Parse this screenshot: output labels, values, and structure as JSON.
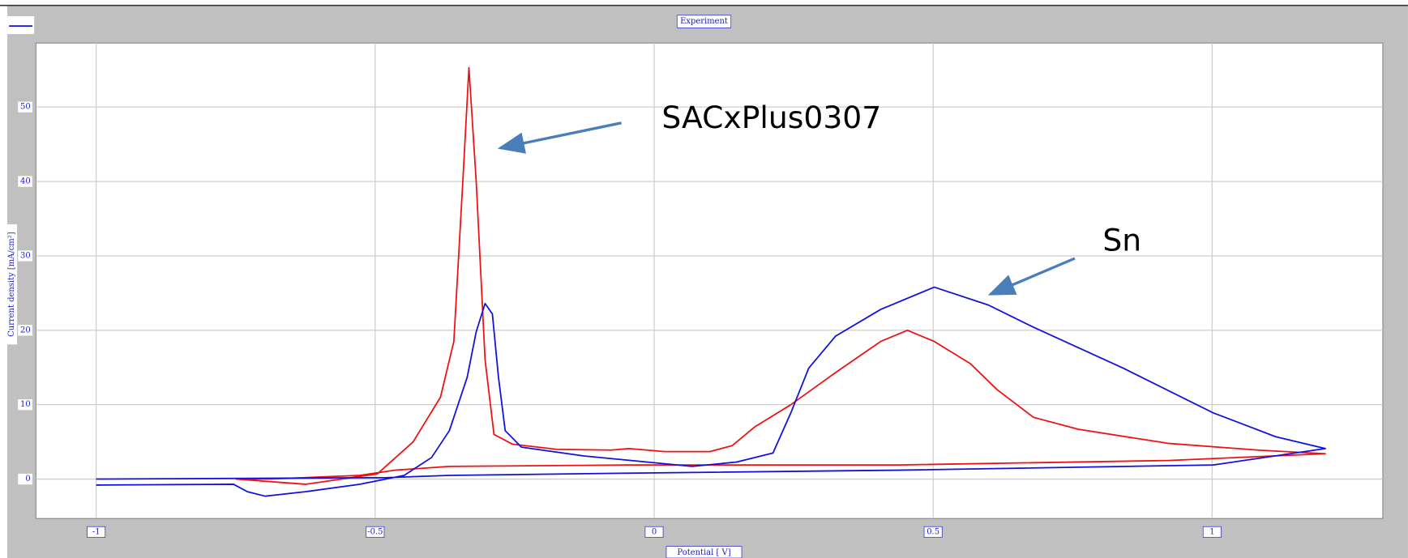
{
  "chart_data": {
    "type": "line",
    "title": "Experiment",
    "x_label": "Potential [ V]",
    "y_label": "Current density [mA/cm²]",
    "annotations": [
      "SACxPlus0307",
      "Sn"
    ],
    "xlim": [
      -1.108,
      1.306
    ],
    "ylim": [
      -5.3,
      58.6
    ],
    "xticks": [
      -1,
      -0.5,
      0,
      0.5,
      1
    ],
    "yticks": [
      0,
      10,
      20,
      30,
      40,
      50
    ],
    "grid": true,
    "series": [
      {
        "color": "#ee1111",
        "x": [
          -0.75,
          -0.625,
          -0.496,
          -0.432,
          -0.383,
          -0.359,
          -0.343,
          -0.332,
          -0.319,
          -0.303,
          -0.287,
          -0.254,
          -0.174,
          -0.077,
          -0.045,
          0.019,
          0.1,
          0.14,
          0.18,
          0.245,
          0.325,
          0.406,
          0.454,
          0.502,
          0.567,
          0.615,
          0.68,
          0.76,
          0.921,
          1.082,
          1.203,
          0.921,
          0.438,
          -0.045,
          -0.367,
          -0.464,
          -0.528,
          -0.689,
          -0.75
        ],
        "values": [
          0,
          -0.7,
          0.7,
          5,
          11,
          18.5,
          40,
          55.3,
          40,
          16,
          6,
          4.7,
          4,
          3.9,
          4.1,
          3.7,
          3.7,
          4.5,
          7,
          10,
          14.3,
          18.5,
          20,
          18.5,
          15.5,
          12,
          8.3,
          6.7,
          4.8,
          3.9,
          3.4,
          2.5,
          1.9,
          1.9,
          1.7,
          1.2,
          0.5,
          0,
          0
        ]
      },
      {
        "color": "#1111dd",
        "x": [
          -1.0,
          -0.754,
          -0.729,
          -0.697,
          -0.625,
          -0.528,
          -0.448,
          -0.399,
          -0.367,
          -0.335,
          -0.319,
          -0.303,
          -0.29,
          -0.279,
          -0.267,
          -0.238,
          -0.126,
          -0.013,
          0.068,
          0.148,
          0.213,
          0.245,
          0.277,
          0.325,
          0.406,
          0.502,
          0.599,
          0.68,
          0.841,
          1.002,
          1.114,
          1.203,
          1.002,
          0.438,
          -0.045,
          -0.367,
          -0.48,
          -1.0
        ],
        "values": [
          -0.8,
          -0.7,
          -1.7,
          -2.3,
          -1.7,
          -0.7,
          0.5,
          2.9,
          6.5,
          13.7,
          19.8,
          23.6,
          22.2,
          13.7,
          6.5,
          4.3,
          3.1,
          2.3,
          1.7,
          2.3,
          3.5,
          8.9,
          14.9,
          19.2,
          22.8,
          25.8,
          23.4,
          20.4,
          14.9,
          8.9,
          5.7,
          4.1,
          1.9,
          1.2,
          0.8,
          0.5,
          0.2,
          0
        ]
      }
    ]
  }
}
